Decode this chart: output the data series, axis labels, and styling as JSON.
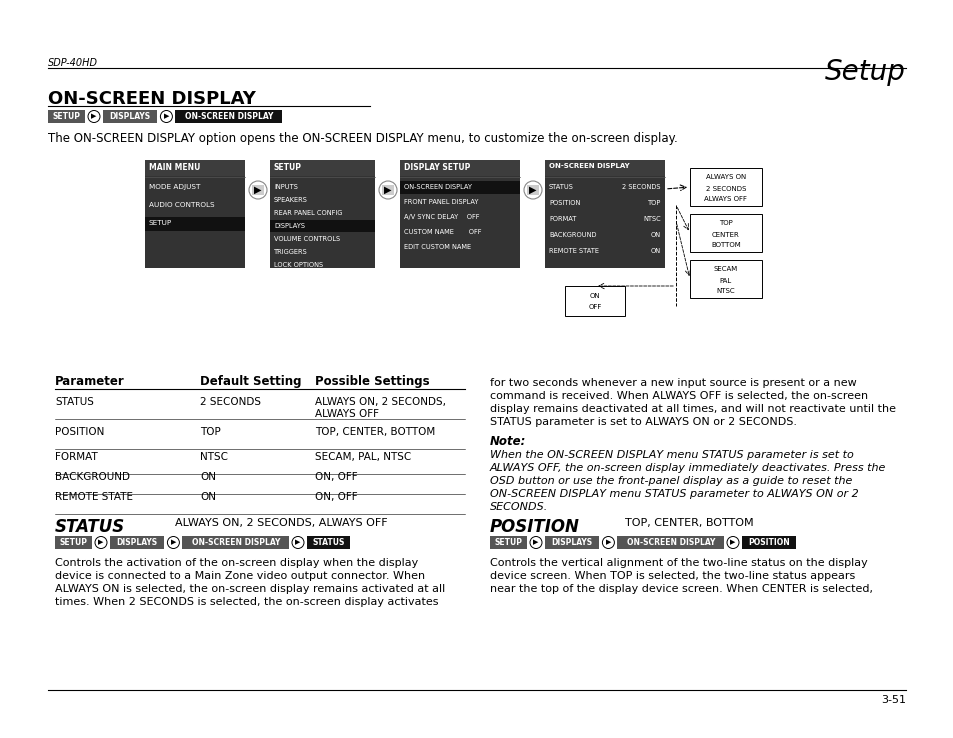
{
  "page_bg": "#ffffff",
  "header_left": "SDP-40HD",
  "header_right": "Setup",
  "footer_right": "3-51",
  "title": "ON-SCREEN DISPLAY",
  "dark_bg": "#333333",
  "darker_bg": "#1a1a1a",
  "mid_bg": "#444444"
}
